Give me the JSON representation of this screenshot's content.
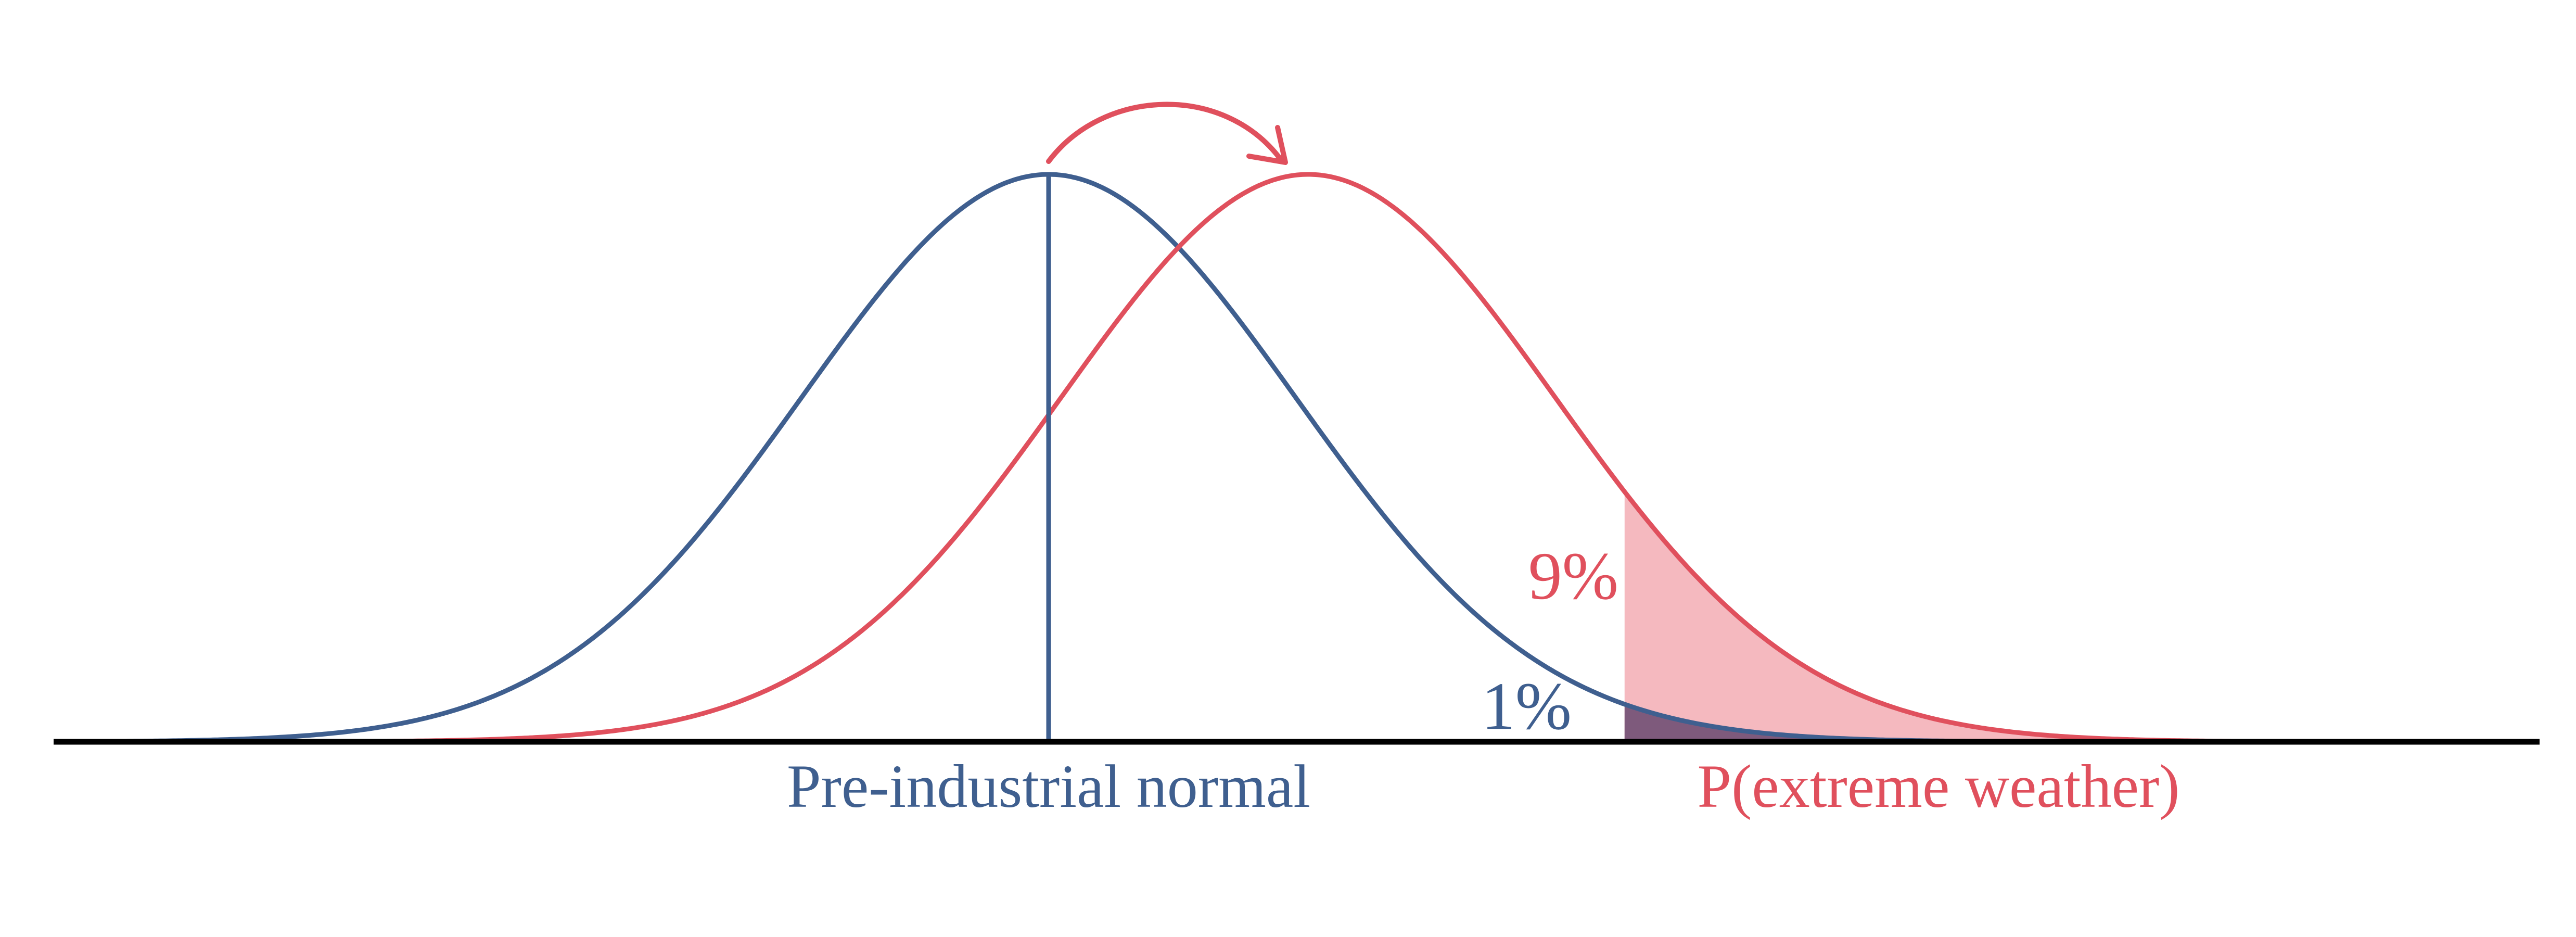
{
  "diagram": {
    "labels": {
      "pre_industrial": "Pre-industrial normal",
      "extreme": "P(extreme weather)",
      "pct_shifted": "9%",
      "pct_baseline": "1%"
    },
    "curves": {
      "baseline": {
        "name": "Pre-industrial normal",
        "mean": 0,
        "color": "#3f5f8f"
      },
      "shifted": {
        "name": "P(extreme weather)",
        "mean": 1.05,
        "color": "#e0505d"
      }
    },
    "threshold_sd": 2.33,
    "tail_probability": {
      "baseline": "1%",
      "shifted": "9%"
    },
    "colors": {
      "baseline": "#3f5f8f",
      "shifted": "#e0505d",
      "shifted_fill": "#f5b9bf",
      "overlap_fill": "#7e5a7c",
      "axis": "#000000"
    }
  }
}
